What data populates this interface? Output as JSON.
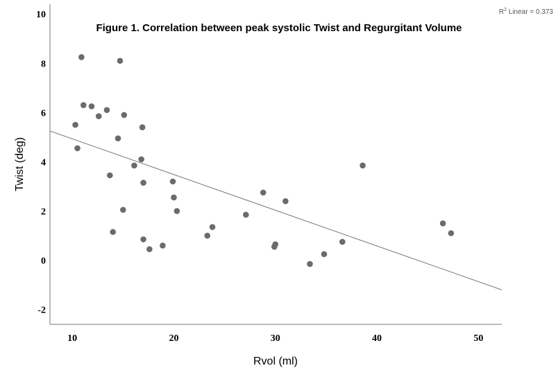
{
  "chart_data": {
    "type": "scatter",
    "title": "Figure 1. Correlation between peak systolic Twist and Regurgitant Volume",
    "xlabel": "Rvol (ml)",
    "ylabel": "Twist (deg)",
    "xlim": [
      7.8,
      52.3
    ],
    "ylim": [
      -2.6,
      10.4
    ],
    "xticks": [
      10,
      20,
      30,
      40,
      50
    ],
    "yticks": [
      -2,
      0,
      2,
      4,
      6,
      8,
      10
    ],
    "legend": {
      "r": "R",
      "sup": "2",
      "text": " Linear = 0.373",
      "placement": "top-right"
    },
    "fit_line": {
      "x": [
        7.8,
        52.3
      ],
      "y": [
        5.25,
        -1.2
      ]
    },
    "points": {
      "x": [
        10.3,
        10.5,
        10.9,
        11.1,
        11.9,
        12.6,
        13.4,
        13.7,
        14.0,
        14.5,
        14.7,
        15.0,
        15.1,
        16.1,
        16.8,
        16.9,
        17.0,
        17.0,
        17.6,
        18.9,
        19.9,
        20.0,
        20.3,
        23.3,
        23.8,
        27.1,
        28.8,
        29.9,
        30.0,
        31.0,
        33.4,
        34.8,
        36.6,
        38.6,
        46.5,
        47.3
      ],
      "y": [
        5.5,
        4.55,
        8.25,
        6.3,
        6.25,
        5.85,
        6.1,
        3.45,
        1.15,
        4.95,
        8.1,
        2.05,
        5.9,
        3.85,
        4.1,
        5.4,
        3.15,
        0.85,
        0.45,
        0.6,
        3.2,
        2.55,
        2.0,
        1.0,
        1.35,
        1.85,
        2.75,
        0.55,
        0.65,
        2.4,
        -0.15,
        0.25,
        0.75,
        3.85,
        1.5,
        1.1
      ]
    }
  }
}
